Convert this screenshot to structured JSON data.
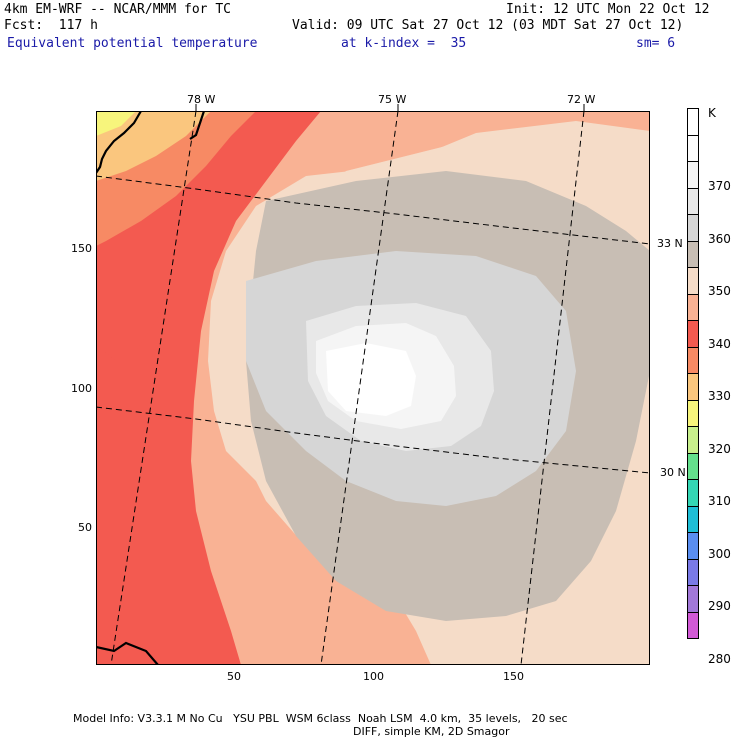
{
  "header": {
    "model": "4km EM-WRF -- NCAR/MMM for TC",
    "init": "Init: 12 UTC Mon 22 Oct 12",
    "fcst": "Fcst:  117 h",
    "valid": "Valid: 09 UTC Sat 27 Oct 12 (03 MDT Sat 27 Oct 12)",
    "field": "Equivalent potential temperature",
    "kindex": "at k-index =  35",
    "sm": "sm= 6"
  },
  "axes": {
    "x_ticks": [
      "50",
      "100",
      "150"
    ],
    "y_ticks": [
      "150",
      "100",
      "50"
    ],
    "lon_labels": [
      "78 W",
      "75 W",
      "72 W"
    ],
    "lat_labels": [
      "33 N",
      "30 N"
    ]
  },
  "legend": {
    "unit": "K",
    "labels": [
      "370",
      "360",
      "350",
      "340",
      "330",
      "320",
      "310",
      "300",
      "290",
      "280"
    ],
    "colors": [
      "#ffffff",
      "#fcfcfc",
      "#f5f5f5",
      "#e8e8e8",
      "#d6d6d6",
      "#c8beb4",
      "#f5dcc8",
      "#f9b294",
      "#f35a50",
      "#f78a64",
      "#fac67e",
      "#f7f57c",
      "#c8f08c",
      "#64e08c",
      "#34d6b4",
      "#1ebed6",
      "#5a8ef0",
      "#7a7ae6",
      "#a278d8",
      "#d25ad6"
    ]
  },
  "footer": {
    "line1": "Model Info: V3.3.1 M No Cu   YSU PBL  WSM 6class  Noah LSM  4.0 km,  35 levels,   20 sec",
    "line2": "DIFF, simple KM, 2D Smagor"
  }
}
